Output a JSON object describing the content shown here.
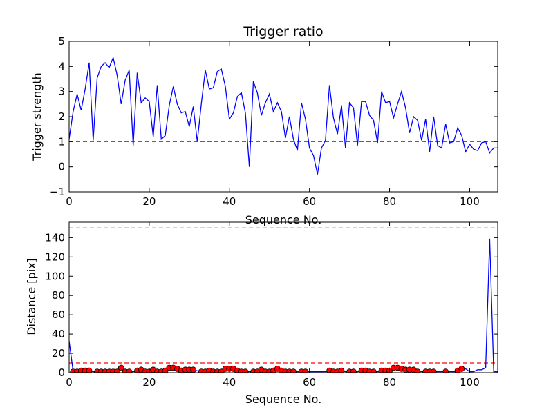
{
  "chart_data": [
    {
      "type": "line",
      "title": "Trigger ratio",
      "xlabel": "Sequence No.",
      "ylabel": "Trigger strength",
      "xlim": [
        0,
        107
      ],
      "ylim": [
        -1,
        5
      ],
      "xticks": [
        0,
        20,
        40,
        60,
        80,
        100
      ],
      "yticks": [
        -1,
        0,
        1,
        2,
        3,
        4,
        5
      ],
      "grid": false,
      "series": [
        {
          "color": "#0000ff",
          "x": [
            0,
            1,
            2,
            3,
            4,
            5,
            6,
            7,
            8,
            9,
            10,
            11,
            12,
            13,
            14,
            15,
            16,
            17,
            18,
            19,
            20,
            21,
            22,
            23,
            24,
            25,
            26,
            27,
            28,
            29,
            30,
            31,
            32,
            33,
            34,
            35,
            36,
            37,
            38,
            39,
            40,
            41,
            42,
            43,
            44,
            45,
            46,
            47,
            48,
            49,
            50,
            51,
            52,
            53,
            54,
            55,
            56,
            57,
            58,
            59,
            60,
            61,
            62,
            63,
            64,
            65,
            66,
            67,
            68,
            69,
            70,
            71,
            72,
            73,
            74,
            75,
            76,
            77,
            78,
            79,
            80,
            81,
            82,
            83,
            84,
            85,
            86,
            87,
            88,
            89,
            90,
            91,
            92,
            93,
            94,
            95,
            96,
            97,
            98,
            99,
            100,
            101,
            102,
            103,
            104,
            105,
            106,
            107
          ],
          "y": [
            1.1,
            2.2,
            2.9,
            2.25,
            3.1,
            4.15,
            1.05,
            3.55,
            4.0,
            4.15,
            3.95,
            4.35,
            3.65,
            2.5,
            3.45,
            3.85,
            0.85,
            3.75,
            2.55,
            2.75,
            2.6,
            1.2,
            3.25,
            1.1,
            1.25,
            2.45,
            3.2,
            2.5,
            2.15,
            2.2,
            1.6,
            2.4,
            1.0,
            2.5,
            3.85,
            3.1,
            3.15,
            3.8,
            3.9,
            3.2,
            1.9,
            2.15,
            2.8,
            2.95,
            2.15,
            0.0,
            3.4,
            2.95,
            2.05,
            2.55,
            2.9,
            2.2,
            2.55,
            2.2,
            1.15,
            2.0,
            1.1,
            0.65,
            2.55,
            1.9,
            0.75,
            0.45,
            -0.3,
            0.75,
            1.05,
            3.25,
            1.95,
            1.3,
            2.45,
            0.75,
            2.55,
            2.35,
            0.85,
            2.6,
            2.6,
            2.05,
            1.85,
            0.95,
            3.0,
            2.55,
            2.6,
            1.95,
            2.5,
            3.0,
            2.35,
            1.35,
            2.0,
            1.85,
            1.05,
            1.9,
            0.6,
            2.0,
            0.85,
            0.75,
            1.7,
            0.95,
            1.0,
            1.55,
            1.25,
            0.6,
            0.9,
            0.7,
            0.65,
            0.95,
            1.0,
            0.55,
            0.75,
            0.75
          ]
        }
      ],
      "reference_lines": [
        {
          "y": 1.0,
          "color": "#ff0000",
          "style": "dashed"
        }
      ]
    },
    {
      "type": "line",
      "title": "",
      "xlabel": "Sequence No.",
      "ylabel": "Distance [pix]",
      "xlim": [
        0,
        107
      ],
      "ylim": [
        0,
        156
      ],
      "xticks": [
        0,
        20,
        40,
        60,
        80,
        100
      ],
      "yticks": [
        0,
        20,
        40,
        60,
        80,
        100,
        120,
        140
      ],
      "grid": false,
      "series": [
        {
          "color": "#0000ff",
          "x": [
            0,
            1,
            2,
            3,
            4,
            5,
            6,
            7,
            8,
            9,
            10,
            11,
            12,
            13,
            14,
            15,
            16,
            17,
            18,
            19,
            20,
            21,
            22,
            23,
            24,
            25,
            26,
            27,
            28,
            29,
            30,
            31,
            32,
            33,
            34,
            35,
            36,
            37,
            38,
            39,
            40,
            41,
            42,
            43,
            44,
            45,
            46,
            47,
            48,
            49,
            50,
            51,
            52,
            53,
            54,
            55,
            56,
            57,
            58,
            59,
            60,
            61,
            62,
            63,
            64,
            65,
            66,
            67,
            68,
            69,
            70,
            71,
            72,
            73,
            74,
            75,
            76,
            77,
            78,
            79,
            80,
            81,
            82,
            83,
            84,
            85,
            86,
            87,
            88,
            89,
            90,
            91,
            92,
            93,
            94,
            95,
            96,
            97,
            98,
            99,
            100,
            101,
            102,
            103,
            104,
            105,
            106,
            107
          ],
          "y": [
            33,
            1,
            1,
            2,
            2,
            2,
            1,
            1,
            1,
            1,
            1,
            1,
            1,
            5,
            1,
            1,
            1,
            2,
            3,
            1,
            1,
            3,
            1,
            1,
            2,
            5,
            5,
            4,
            2,
            3,
            3,
            3,
            2,
            1,
            1,
            2,
            1,
            1,
            1,
            4,
            4,
            4,
            2,
            1,
            1,
            1,
            1,
            1,
            3,
            1,
            1,
            2,
            4,
            2,
            1,
            1,
            1,
            1,
            1,
            1,
            1,
            1,
            1,
            1,
            1,
            2,
            1,
            1,
            2,
            1,
            1,
            1,
            1,
            2,
            2,
            1,
            1,
            1,
            1,
            2,
            2,
            2,
            5,
            5,
            4,
            3,
            3,
            3,
            1,
            1,
            1,
            1,
            1,
            1,
            3,
            1,
            1,
            1,
            2,
            4,
            1,
            1,
            3,
            3,
            5,
            139,
            1,
            1
          ]
        },
        {
          "type": "markers",
          "color": "#ff0000",
          "x": [
            1,
            2,
            3,
            4,
            5,
            7,
            8,
            9,
            10,
            11,
            12,
            13,
            14,
            15,
            17,
            18,
            19,
            20,
            21,
            22,
            23,
            24,
            25,
            26,
            27,
            28,
            29,
            30,
            31,
            33,
            34,
            35,
            36,
            37,
            38,
            39,
            40,
            41,
            42,
            43,
            44,
            46,
            47,
            48,
            49,
            50,
            51,
            52,
            53,
            54,
            55,
            56,
            58,
            59,
            65,
            66,
            67,
            68,
            70,
            71,
            73,
            74,
            75,
            76,
            78,
            79,
            80,
            81,
            82,
            83,
            84,
            85,
            86,
            87,
            89,
            90,
            91,
            94,
            97,
            98
          ],
          "y": [
            1,
            1,
            2,
            2,
            2,
            1,
            1,
            1,
            1,
            1,
            1,
            5,
            1,
            1,
            2,
            3,
            1,
            1,
            3,
            1,
            1,
            2,
            5,
            5,
            4,
            2,
            3,
            3,
            3,
            1,
            1,
            2,
            1,
            1,
            1,
            4,
            4,
            4,
            2,
            1,
            1,
            1,
            1,
            3,
            1,
            1,
            2,
            4,
            2,
            1,
            1,
            1,
            1,
            1,
            2,
            1,
            1,
            2,
            1,
            1,
            2,
            2,
            1,
            1,
            2,
            2,
            2,
            5,
            5,
            4,
            3,
            3,
            3,
            1,
            1,
            1,
            1,
            1,
            2,
            4
          ]
        }
      ],
      "reference_lines": [
        {
          "y": 150,
          "color": "#ff0000",
          "style": "dashed"
        },
        {
          "y": 10,
          "color": "#ff0000",
          "style": "dashed"
        }
      ]
    }
  ]
}
